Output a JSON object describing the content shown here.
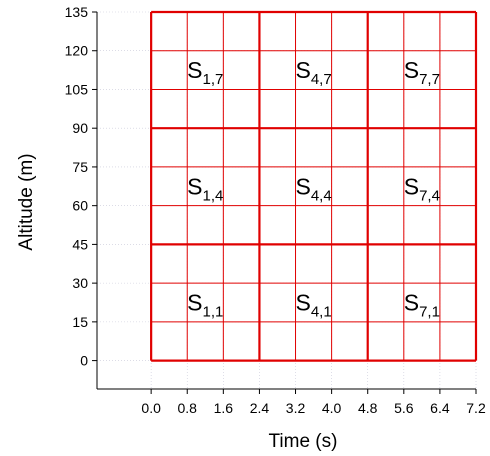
{
  "chart_data": {
    "type": "heatmap",
    "title": "",
    "xlabel": "Time (s)",
    "ylabel": "Altitude (m)",
    "xlim": [
      -1.2,
      7.2
    ],
    "ylim": [
      -11,
      135
    ],
    "x_ticks": [
      "0.0",
      "0.8",
      "1.6",
      "2.4",
      "3.2",
      "4.0",
      "4.8",
      "5.6",
      "6.4",
      "7.2"
    ],
    "x_tick_values": [
      0.0,
      0.8,
      1.6,
      2.4,
      3.2,
      4.0,
      4.8,
      5.6,
      6.4,
      7.2
    ],
    "y_ticks": [
      "0",
      "15",
      "30",
      "45",
      "60",
      "75",
      "90",
      "105",
      "120",
      "135"
    ],
    "y_tick_values": [
      0,
      15,
      30,
      45,
      60,
      75,
      90,
      105,
      120,
      135
    ],
    "major_grid_x": [
      0.0,
      2.4,
      4.8,
      7.2
    ],
    "major_grid_y": [
      0,
      45,
      90,
      135
    ],
    "minor_grid_x": [
      0.8,
      1.6,
      3.2,
      4.0,
      5.6,
      6.4
    ],
    "minor_grid_y": [
      15,
      30,
      60,
      75,
      105,
      120
    ],
    "grid_color": "#e00000",
    "cells": [
      {
        "main": "S",
        "sub": "1,7",
        "x": 1.2,
        "y": 112.5
      },
      {
        "main": "S",
        "sub": "4,7",
        "x": 3.6,
        "y": 112.5
      },
      {
        "main": "S",
        "sub": "7,7",
        "x": 6.0,
        "y": 112.5
      },
      {
        "main": "S",
        "sub": "1,4",
        "x": 1.2,
        "y": 67.5
      },
      {
        "main": "S",
        "sub": "4,4",
        "x": 3.6,
        "y": 67.5
      },
      {
        "main": "S",
        "sub": "7,4",
        "x": 6.0,
        "y": 67.5
      },
      {
        "main": "S",
        "sub": "1,1",
        "x": 1.2,
        "y": 22.5
      },
      {
        "main": "S",
        "sub": "4,1",
        "x": 3.6,
        "y": 22.5
      },
      {
        "main": "S",
        "sub": "7,1",
        "x": 6.0,
        "y": 22.5
      }
    ]
  }
}
